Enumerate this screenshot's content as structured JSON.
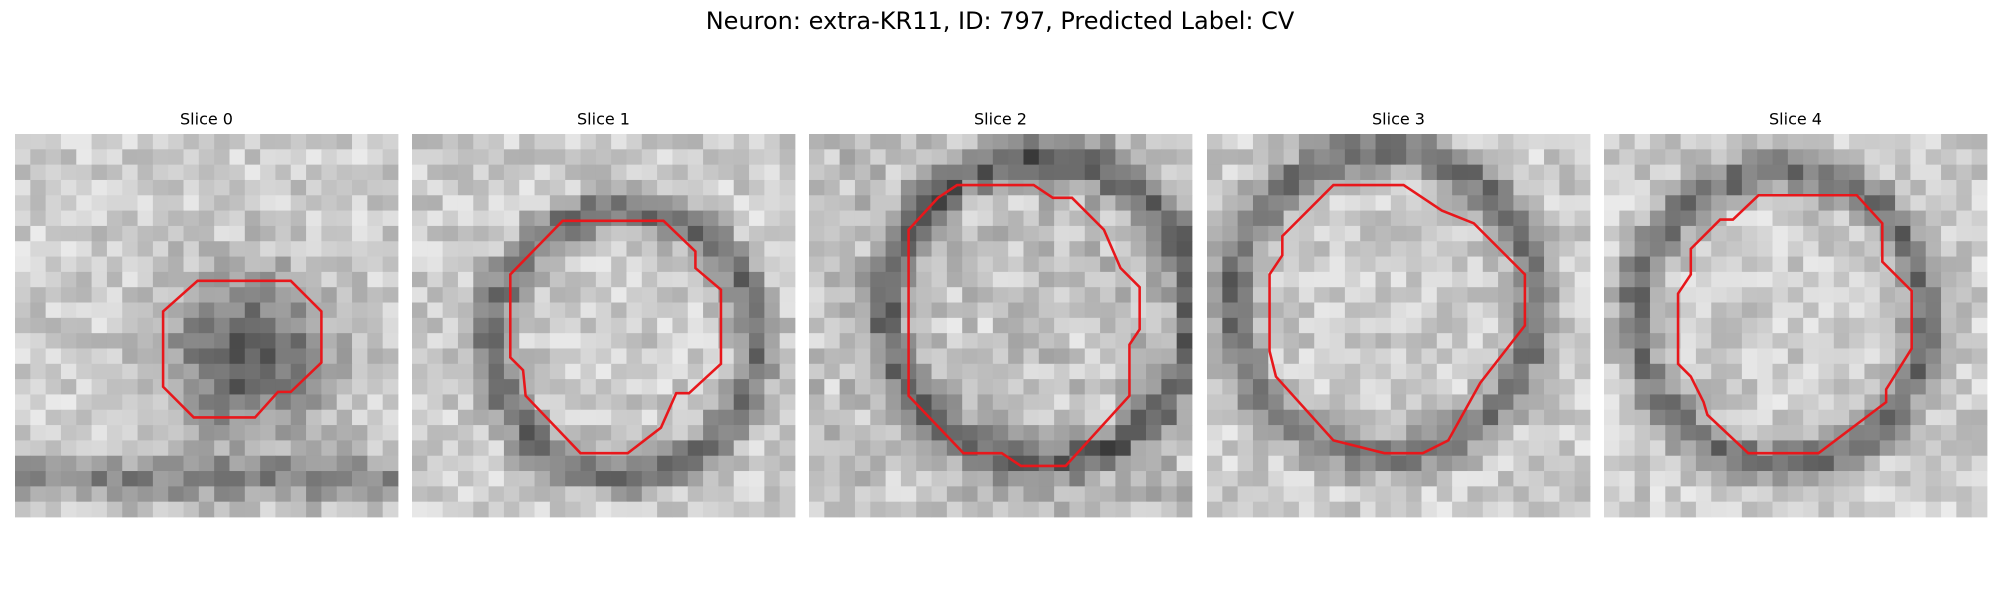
{
  "title": "Neuron: extra-KR11, ID: 797, Predicted Label: CV",
  "panels": [
    {
      "title": "Slice 0"
    },
    {
      "title": "Slice 1"
    },
    {
      "title": "Slice 2"
    },
    {
      "title": "Slice 3"
    },
    {
      "title": "Slice 4"
    }
  ]
}
